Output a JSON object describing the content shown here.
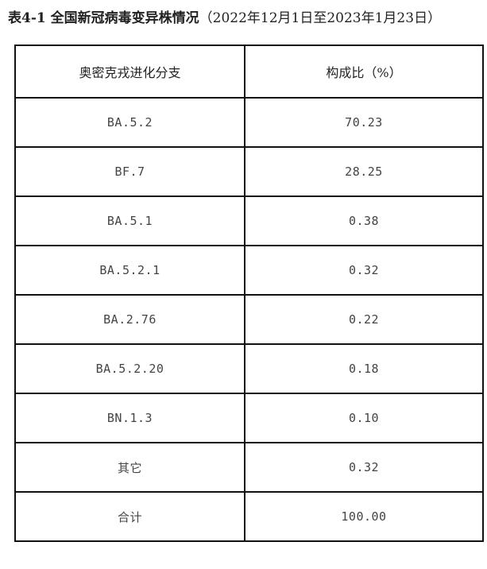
{
  "title": {
    "main": "表4-1 全国新冠病毒变异株情况",
    "sub": "（2022年12月1日至2023年1月23日）"
  },
  "table": {
    "headers": [
      "奥密克戎进化分支",
      "构成比（%）"
    ],
    "rows": [
      [
        "BA.5.2",
        "70.23"
      ],
      [
        "BF.7",
        "28.25"
      ],
      [
        "BA.5.1",
        "0.38"
      ],
      [
        "BA.5.2.1",
        "0.32"
      ],
      [
        "BA.2.76",
        "0.22"
      ],
      [
        "BA.5.2.20",
        "0.18"
      ],
      [
        "BN.1.3",
        "0.10"
      ],
      [
        "其它",
        "0.32"
      ],
      [
        "合计",
        "100.00"
      ]
    ]
  }
}
